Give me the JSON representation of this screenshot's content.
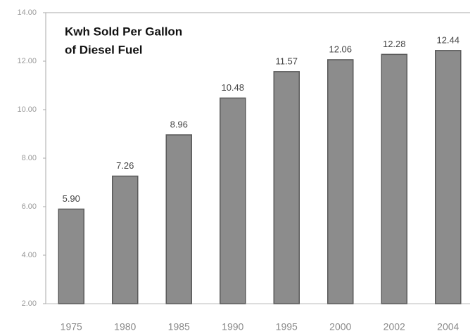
{
  "chart_data": {
    "type": "bar",
    "title": [
      "Kwh Sold Per Gallon",
      "of Diesel Fuel"
    ],
    "categories": [
      "1975",
      "1980",
      "1985",
      "1990",
      "1995",
      "2000",
      "2002",
      "2004"
    ],
    "values": [
      5.9,
      7.26,
      8.96,
      10.48,
      11.57,
      12.06,
      12.28,
      12.44
    ],
    "value_labels": [
      "5.90",
      "7.26",
      "8.96",
      "10.48",
      "11.57",
      "12.06",
      "12.28",
      "12.44"
    ],
    "color": "#8c8c8c",
    "ylim": [
      2,
      14
    ],
    "yticks": [
      {
        "value": 2,
        "label": "2.00"
      },
      {
        "value": 4,
        "label": "4.00"
      },
      {
        "value": 6,
        "label": "6.00"
      },
      {
        "value": 8,
        "label": "8.00"
      },
      {
        "value": 10,
        "label": "10.00"
      },
      {
        "value": 12,
        "label": "12.00"
      },
      {
        "value": 14,
        "label": "14.00"
      }
    ]
  }
}
